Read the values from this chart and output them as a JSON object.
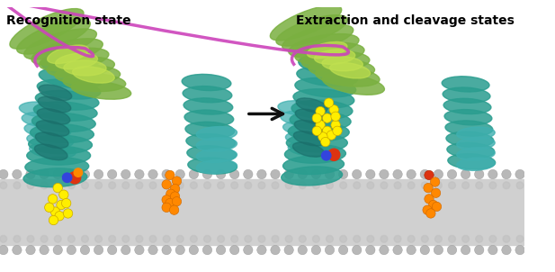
{
  "title_left": "Recognition state",
  "title_right": "Extraction and cleavage states",
  "title_fontsize": 10,
  "title_fontweight": "bold",
  "bg_color": "#ffffff",
  "membrane_color": "#d0d0d0",
  "membrane_head_color": "#b8b8b8",
  "teal_dark": "#1a6e6a",
  "teal_mid": "#2a9d8f",
  "teal_light": "#3bbfb0",
  "cyan_color": "#40b0b0",
  "green_dark": "#5a8a30",
  "green_mid": "#7ab040",
  "green_light": "#a0cc60",
  "lime_color": "#c0e050",
  "magenta_color": "#cc44bb",
  "yellow_color": "#ffee00",
  "orange_dark": "#cc6600",
  "orange_color": "#ff8800",
  "red_color": "#dd3311",
  "blue_color": "#3344dd",
  "arrow_color": "#111111",
  "figw": 6.17,
  "figh": 3.02,
  "dpi": 100
}
